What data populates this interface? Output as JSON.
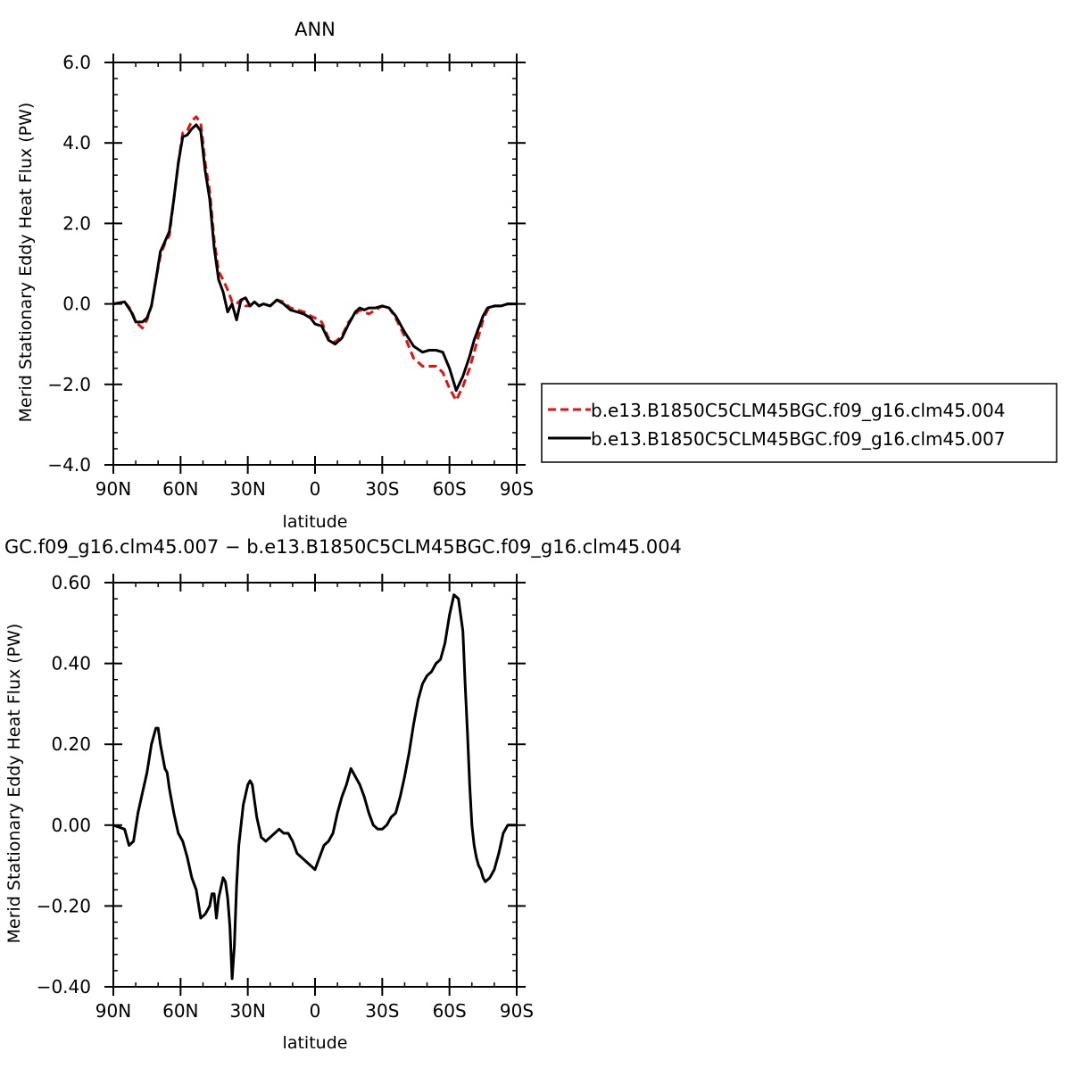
{
  "chart_data": [
    {
      "type": "line",
      "title": "ANN",
      "xlabel": "latitude",
      "ylabel": "Merid Stationary Eddy Heat Flux (PW)",
      "xlim": [
        90,
        -90
      ],
      "ylim": [
        -4.0,
        6.0
      ],
      "x_ticks": [
        90,
        60,
        30,
        0,
        -30,
        -60,
        -90
      ],
      "x_tick_labels": [
        "90N",
        "60N",
        "30N",
        "0",
        "30S",
        "60S",
        "90S"
      ],
      "y_ticks": [
        -4.0,
        -2.0,
        0.0,
        2.0,
        4.0,
        6.0
      ],
      "y_tick_labels": [
        "−4.0",
        "−2.0",
        "0.0",
        "2.0",
        "4.0",
        "6.0"
      ],
      "legend_position": "right-outside",
      "series": [
        {
          "name": "b.e13.B1850C5CLM45BGC.f09_g16.clm45.004",
          "color": "#e8100e",
          "dash": "dashed",
          "x": [
            90,
            85,
            82,
            80,
            77,
            75,
            73,
            71,
            69,
            67,
            65,
            63,
            61,
            59,
            57,
            55,
            53,
            51,
            49,
            47,
            45,
            43,
            41,
            39,
            37,
            35,
            33,
            31,
            29,
            27,
            25,
            23,
            20,
            17,
            14,
            11,
            8,
            5,
            2,
            0,
            -3,
            -6,
            -9,
            -12,
            -15,
            -18,
            -20,
            -22,
            -24,
            -27,
            -30,
            -33,
            -36,
            -40,
            -44,
            -48,
            -51,
            -54,
            -57,
            -60,
            -63,
            -66,
            -69,
            -71,
            -73,
            -75,
            -77,
            -80,
            -83,
            -86,
            -88,
            -90
          ],
          "y": [
            0.0,
            0.05,
            -0.15,
            -0.45,
            -0.6,
            -0.4,
            -0.05,
            0.6,
            1.2,
            1.5,
            1.7,
            2.6,
            3.5,
            4.25,
            4.3,
            4.55,
            4.65,
            4.5,
            3.5,
            2.8,
            1.6,
            0.8,
            0.6,
            0.35,
            0.05,
            0.0,
            0.1,
            -0.05,
            -0.05,
            0.05,
            -0.05,
            0.0,
            -0.05,
            0.1,
            0.05,
            -0.1,
            -0.15,
            -0.2,
            -0.3,
            -0.35,
            -0.45,
            -0.85,
            -0.95,
            -0.8,
            -0.45,
            -0.25,
            -0.15,
            -0.2,
            -0.25,
            -0.15,
            -0.05,
            -0.1,
            -0.35,
            -0.8,
            -1.35,
            -1.55,
            -1.55,
            -1.55,
            -1.7,
            -2.1,
            -2.4,
            -2.05,
            -1.6,
            -1.2,
            -0.8,
            -0.4,
            -0.15,
            -0.05,
            -0.05,
            0.0,
            0.0,
            0.0
          ]
        },
        {
          "name": "b.e13.B1850C5CLM45BGC.f09_g16.clm45.007",
          "color": "#000000",
          "dash": "solid",
          "x": [
            90,
            85,
            82,
            80,
            77,
            75,
            73,
            71,
            69,
            67,
            65,
            63,
            61,
            59,
            57,
            55,
            53,
            51,
            49,
            47,
            45,
            43,
            41,
            39,
            37,
            35,
            33,
            31,
            29,
            27,
            25,
            23,
            20,
            17,
            14,
            11,
            8,
            5,
            2,
            0,
            -3,
            -6,
            -9,
            -12,
            -15,
            -18,
            -20,
            -22,
            -24,
            -27,
            -30,
            -33,
            -36,
            -40,
            -44,
            -48,
            -51,
            -54,
            -57,
            -60,
            -63,
            -66,
            -69,
            -71,
            -73,
            -75,
            -77,
            -80,
            -83,
            -86,
            -88,
            -90
          ],
          "y": [
            0.0,
            0.05,
            -0.2,
            -0.45,
            -0.45,
            -0.35,
            -0.05,
            0.6,
            1.3,
            1.55,
            1.8,
            2.6,
            3.5,
            4.15,
            4.2,
            4.35,
            4.45,
            4.3,
            3.3,
            2.6,
            1.4,
            0.6,
            0.3,
            -0.2,
            0.0,
            -0.4,
            0.1,
            0.15,
            -0.05,
            0.05,
            -0.05,
            0.0,
            -0.05,
            0.1,
            0.0,
            -0.15,
            -0.2,
            -0.25,
            -0.35,
            -0.5,
            -0.55,
            -0.9,
            -1.0,
            -0.85,
            -0.5,
            -0.2,
            -0.1,
            -0.15,
            -0.1,
            -0.1,
            -0.05,
            -0.1,
            -0.3,
            -0.7,
            -1.05,
            -1.2,
            -1.15,
            -1.15,
            -1.2,
            -1.6,
            -2.15,
            -1.8,
            -1.3,
            -0.9,
            -0.6,
            -0.3,
            -0.1,
            -0.05,
            -0.05,
            0.0,
            0.0,
            0.0
          ]
        }
      ]
    },
    {
      "type": "line",
      "title": "GC.f09_g16.clm45.007 − b.e13.B1850C5CLM45BGC.f09_g16.clm45.004",
      "xlabel": "latitude",
      "ylabel": "Merid Stationary Eddy Heat Flux (PW)",
      "xlim": [
        90,
        -90
      ],
      "ylim": [
        -0.4,
        0.6
      ],
      "x_ticks": [
        90,
        60,
        30,
        0,
        -30,
        -60,
        -90
      ],
      "x_tick_labels": [
        "90N",
        "60N",
        "30N",
        "0",
        "30S",
        "60S",
        "90S"
      ],
      "y_ticks": [
        -0.4,
        -0.2,
        0.0,
        0.2,
        0.4,
        0.6
      ],
      "y_tick_labels": [
        "−0.40",
        "−0.20",
        "0.00",
        "0.20",
        "0.40",
        "0.60"
      ],
      "series": [
        {
          "color": "#000000",
          "dash": "solid",
          "x": [
            90,
            85,
            83,
            81,
            79,
            77,
            75,
            73,
            71,
            70,
            69,
            67,
            66,
            65,
            63,
            61,
            59,
            57,
            55,
            53,
            51,
            49,
            47,
            46,
            45,
            44,
            43,
            41,
            40,
            39,
            38,
            37,
            36,
            35,
            34,
            33,
            32,
            30,
            29,
            28,
            27,
            26,
            24,
            22,
            20,
            18,
            16,
            14,
            12,
            10,
            8,
            6,
            4,
            2,
            0,
            -2,
            -4,
            -6,
            -8,
            -10,
            -12,
            -14,
            -16,
            -18,
            -20,
            -22,
            -24,
            -26,
            -28,
            -30,
            -32,
            -34,
            -36,
            -38,
            -40,
            -42,
            -44,
            -46,
            -48,
            -50,
            -52,
            -54,
            -56,
            -58,
            -60,
            -62,
            -64,
            -66,
            -67,
            -68,
            -69,
            -70,
            -71,
            -72,
            -73,
            -74,
            -75,
            -76,
            -78,
            -80,
            -82,
            -84,
            -86,
            -88,
            -90
          ],
          "y": [
            0.0,
            -0.01,
            -0.05,
            -0.04,
            0.03,
            0.08,
            0.13,
            0.2,
            0.24,
            0.24,
            0.2,
            0.14,
            0.13,
            0.09,
            0.03,
            -0.02,
            -0.04,
            -0.08,
            -0.13,
            -0.16,
            -0.23,
            -0.22,
            -0.2,
            -0.17,
            -0.17,
            -0.23,
            -0.18,
            -0.13,
            -0.14,
            -0.18,
            -0.25,
            -0.38,
            -0.3,
            -0.15,
            -0.05,
            0.0,
            0.05,
            0.1,
            0.11,
            0.1,
            0.06,
            0.02,
            -0.03,
            -0.04,
            -0.03,
            -0.02,
            -0.01,
            -0.02,
            -0.02,
            -0.04,
            -0.07,
            -0.08,
            -0.09,
            -0.1,
            -0.11,
            -0.08,
            -0.05,
            -0.04,
            -0.02,
            0.03,
            0.07,
            0.1,
            0.14,
            0.12,
            0.1,
            0.07,
            0.03,
            0.0,
            -0.01,
            -0.01,
            0.0,
            0.02,
            0.03,
            0.07,
            0.12,
            0.18,
            0.25,
            0.31,
            0.35,
            0.37,
            0.38,
            0.4,
            0.41,
            0.45,
            0.52,
            0.57,
            0.56,
            0.48,
            0.35,
            0.23,
            0.1,
            0.0,
            -0.05,
            -0.08,
            -0.1,
            -0.11,
            -0.13,
            -0.14,
            -0.13,
            -0.11,
            -0.07,
            -0.02,
            0.0,
            0.0,
            0.0
          ]
        }
      ]
    }
  ]
}
